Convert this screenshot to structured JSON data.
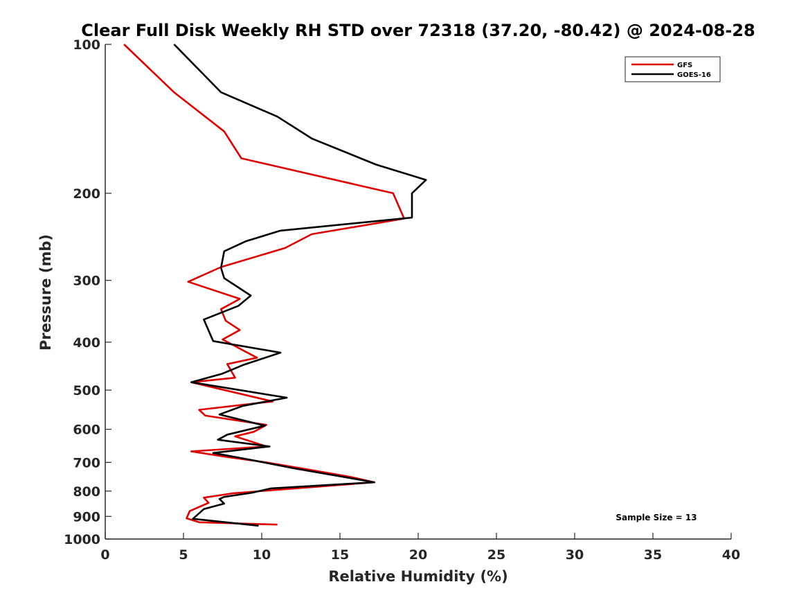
{
  "chart_data": {
    "type": "line",
    "title": "Clear Full Disk Weekly RH STD over 72318 (37.20, -80.42) @ 2024-08-28",
    "xlabel": "Relative Humidity (%)",
    "ylabel": "Pressure (mb)",
    "xlim": [
      0,
      40
    ],
    "ylim": [
      1000,
      100
    ],
    "yscale": "log",
    "xticks": [
      0,
      5,
      10,
      15,
      20,
      25,
      30,
      35,
      40
    ],
    "yticks": [
      100,
      200,
      300,
      400,
      500,
      600,
      700,
      800,
      900,
      1000
    ],
    "grid": false,
    "legend_position": "top-right",
    "annotation": "Sample Size = 13",
    "series": [
      {
        "name": "GFS",
        "color": "#e00000",
        "points": [
          [
            1.2,
            100
          ],
          [
            4.4,
            125
          ],
          [
            7.6,
            150
          ],
          [
            8.7,
            170
          ],
          [
            18.4,
            200
          ],
          [
            19.1,
            225
          ],
          [
            13.2,
            242
          ],
          [
            11.5,
            258
          ],
          [
            7.4,
            282
          ],
          [
            5.3,
            302
          ],
          [
            8.6,
            327
          ],
          [
            7.4,
            343
          ],
          [
            7.7,
            362
          ],
          [
            8.6,
            378
          ],
          [
            7.5,
            395
          ],
          [
            9.7,
            430
          ],
          [
            7.8,
            443
          ],
          [
            8.3,
            472
          ],
          [
            5.5,
            482
          ],
          [
            10.7,
            527
          ],
          [
            6.0,
            548
          ],
          [
            6.4,
            563
          ],
          [
            10.3,
            588
          ],
          [
            9.5,
            607
          ],
          [
            8.3,
            620
          ],
          [
            10.3,
            650
          ],
          [
            5.5,
            665
          ],
          [
            7.7,
            682
          ],
          [
            10.3,
            700
          ],
          [
            12.8,
            722
          ],
          [
            15.6,
            748
          ],
          [
            17.2,
            768
          ],
          [
            11.0,
            795
          ],
          [
            8.2,
            808
          ],
          [
            6.3,
            825
          ],
          [
            6.6,
            845
          ],
          [
            5.4,
            878
          ],
          [
            5.2,
            908
          ],
          [
            6.0,
            925
          ],
          [
            11.0,
            935
          ]
        ]
      },
      {
        "name": "GOES-16",
        "color": "#000000",
        "points": [
          [
            4.4,
            100
          ],
          [
            7.4,
            125
          ],
          [
            11.0,
            140
          ],
          [
            13.2,
            155
          ],
          [
            17.3,
            175
          ],
          [
            20.5,
            188
          ],
          [
            19.6,
            200
          ],
          [
            19.6,
            224
          ],
          [
            11.2,
            238
          ],
          [
            9.0,
            250
          ],
          [
            7.6,
            262
          ],
          [
            7.4,
            283
          ],
          [
            7.6,
            297
          ],
          [
            9.3,
            322
          ],
          [
            8.5,
            338
          ],
          [
            6.3,
            360
          ],
          [
            6.9,
            398
          ],
          [
            11.2,
            420
          ],
          [
            8.8,
            445
          ],
          [
            7.5,
            463
          ],
          [
            5.5,
            482
          ],
          [
            11.6,
            518
          ],
          [
            8.8,
            538
          ],
          [
            7.3,
            560
          ],
          [
            10.2,
            590
          ],
          [
            7.8,
            615
          ],
          [
            7.2,
            630
          ],
          [
            10.5,
            650
          ],
          [
            6.9,
            670
          ],
          [
            9.1,
            690
          ],
          [
            12.1,
            720
          ],
          [
            17.2,
            768
          ],
          [
            10.6,
            790
          ],
          [
            9.4,
            806
          ],
          [
            7.6,
            822
          ],
          [
            7.3,
            830
          ],
          [
            7.6,
            848
          ],
          [
            6.3,
            870
          ],
          [
            5.6,
            910
          ],
          [
            9.8,
            940
          ]
        ]
      }
    ]
  }
}
